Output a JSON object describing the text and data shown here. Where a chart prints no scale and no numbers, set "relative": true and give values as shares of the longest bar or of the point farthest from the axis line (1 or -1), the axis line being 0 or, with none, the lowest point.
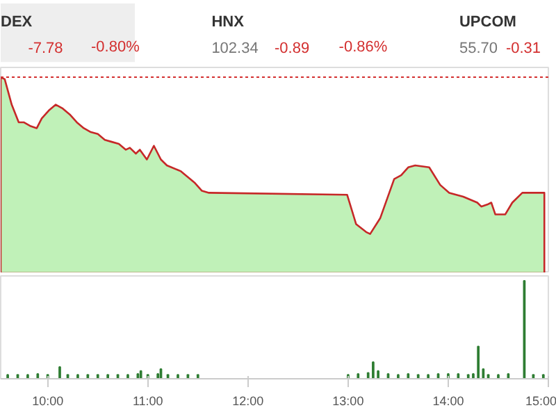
{
  "chart_data": [
    {
      "type": "other",
      "annotations": [
        "DEX",
        "-7.78",
        "-0.80%",
        "HNX",
        "102.34",
        "-0.89",
        "-0.86%",
        "UPCOM",
        "55.70",
        "-0.31"
      ]
    },
    {
      "type": "area",
      "x": [
        9.53,
        9.57,
        9.64,
        9.71,
        9.76,
        9.83,
        9.89,
        9.94,
        10.01,
        10.08,
        10.15,
        10.22,
        10.29,
        10.36,
        10.43,
        10.5,
        10.57,
        10.64,
        10.71,
        10.78,
        10.82,
        10.88,
        10.92,
        10.99,
        11.06,
        11.13,
        11.19,
        11.33,
        11.47,
        11.54,
        11.61,
        12.99,
        13.08,
        13.18,
        13.22,
        13.32,
        13.46,
        13.53,
        13.6,
        13.67,
        13.81,
        13.92,
        14.01,
        14.15,
        14.29,
        14.33,
        14.39,
        14.43,
        14.47,
        14.57,
        14.64,
        14.74,
        14.96
      ],
      "series": [
        {
          "color": "#b9efb0",
          "values": [
            1.0,
            0.99,
            0.86,
            0.77,
            0.77,
            0.75,
            0.74,
            0.79,
            0.83,
            0.86,
            0.84,
            0.81,
            0.77,
            0.74,
            0.72,
            0.71,
            0.68,
            0.67,
            0.66,
            0.63,
            0.64,
            0.61,
            0.63,
            0.58,
            0.65,
            0.58,
            0.55,
            0.52,
            0.46,
            0.42,
            0.41,
            0.4,
            0.25,
            0.21,
            0.2,
            0.28,
            0.48,
            0.5,
            0.54,
            0.55,
            0.54,
            0.45,
            0.41,
            0.39,
            0.36,
            0.34,
            0.35,
            0.36,
            0.3,
            0.3,
            0.36,
            0.41,
            0.41
          ]
        }
      ],
      "relative": true,
      "xlim": [
        9.53,
        15.0
      ],
      "tick_labels": false,
      "ref_lines": [
        {
          "axis": "y",
          "value": 1.0,
          "color": "#d32f2f",
          "line_style": "dashed"
        }
      ]
    },
    {
      "type": "bar",
      "x": [
        9.6,
        9.7,
        9.8,
        9.9,
        10.0,
        10.12,
        10.2,
        10.3,
        10.4,
        10.5,
        10.6,
        10.7,
        10.8,
        10.9,
        10.93,
        11.0,
        11.1,
        11.13,
        11.2,
        11.3,
        11.4,
        11.5,
        13.0,
        13.1,
        13.2,
        13.25,
        13.3,
        13.4,
        13.5,
        13.6,
        13.7,
        13.8,
        13.9,
        14.0,
        14.1,
        14.2,
        14.25,
        14.3,
        14.35,
        14.4,
        14.5,
        14.6,
        14.76,
        14.85,
        14.95
      ],
      "values": [
        0.04,
        0.04,
        0.04,
        0.05,
        0.04,
        0.12,
        0.04,
        0.04,
        0.04,
        0.04,
        0.04,
        0.04,
        0.04,
        0.05,
        0.08,
        0.04,
        0.05,
        0.1,
        0.04,
        0.04,
        0.04,
        0.04,
        0.04,
        0.05,
        0.06,
        0.17,
        0.08,
        0.05,
        0.04,
        0.05,
        0.04,
        0.04,
        0.05,
        0.05,
        0.05,
        0.04,
        0.05,
        0.33,
        0.1,
        0.04,
        0.04,
        0.05,
        1.0,
        0.04,
        0.04
      ],
      "color": "#2e7d32",
      "relative": true,
      "xlim": [
        9.53,
        15.0
      ],
      "xticks": [
        {
          "value": 10,
          "label": "10:00"
        },
        {
          "value": 11,
          "label": "11:00"
        },
        {
          "value": 12,
          "label": "12:00"
        },
        {
          "value": 13,
          "label": "13:00"
        },
        {
          "value": 14,
          "label": "14:00"
        },
        {
          "value": 15,
          "label": "15:00"
        }
      ],
      "tick_labels": "x"
    }
  ]
}
